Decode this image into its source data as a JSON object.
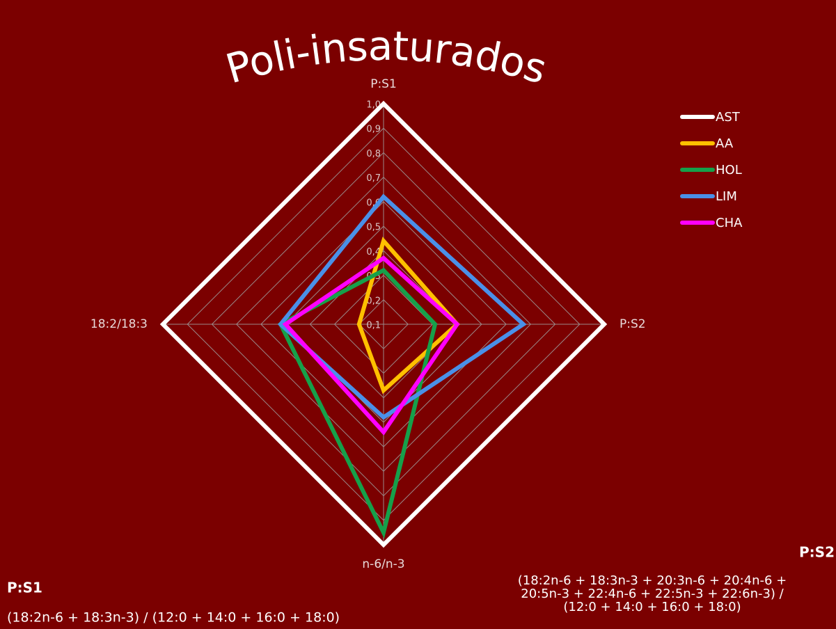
{
  "chart_data": {
    "type": "radar",
    "title": "Poli-insaturados",
    "categories": [
      "P:S1",
      "P:S2",
      "n-6/n-3",
      "18:2/18:3"
    ],
    "ylim": [
      0.1,
      1.0
    ],
    "yticks": [
      {
        "value": 0.1,
        "label": "0,1"
      },
      {
        "value": 0.2,
        "label": "0,2"
      },
      {
        "value": 0.3,
        "label": "0,3"
      },
      {
        "value": 0.4,
        "label": "0,4"
      },
      {
        "value": 0.5,
        "label": "0,5"
      },
      {
        "value": 0.6,
        "label": "0,6"
      },
      {
        "value": 0.7,
        "label": "0,7"
      },
      {
        "value": 0.8,
        "label": "0,8"
      },
      {
        "value": 0.9,
        "label": "0,9"
      },
      {
        "value": 1.0,
        "label": "1,0"
      }
    ],
    "grid": true,
    "legend": "top-right",
    "series": [
      {
        "name": "AST",
        "color": "#ffffff",
        "values": [
          1.0,
          1.0,
          1.0,
          1.0
        ]
      },
      {
        "name": "AA",
        "color": "#ffc000",
        "values": [
          0.44,
          0.4,
          0.37,
          0.2
        ]
      },
      {
        "name": "HOL",
        "color": "#16a04a",
        "values": [
          0.32,
          0.31,
          0.95,
          0.52
        ]
      },
      {
        "name": "LIM",
        "color": "#4a90e8",
        "values": [
          0.62,
          0.67,
          0.48,
          0.52
        ]
      },
      {
        "name": "CHA",
        "color": "#ff00ff",
        "values": [
          0.37,
          0.4,
          0.54,
          0.5
        ]
      }
    ],
    "annotations": [
      {
        "title": "P:S1",
        "lines": [
          "(18:2n-6 + 18:3n-3) / (12:0 + 14:0 + 16:0 + 18:0)"
        ]
      },
      {
        "title": "P:S2",
        "lines": [
          "(18:2n-6 + 18:3n-3 + 20:3n-6 + 20:4n-6 +",
          "20:5n-3 + 22:4n-6 + 22:5n-3 + 22:6n-3) /",
          "(12:0 + 14:0 + 16:0 + 18:0)"
        ]
      }
    ]
  }
}
